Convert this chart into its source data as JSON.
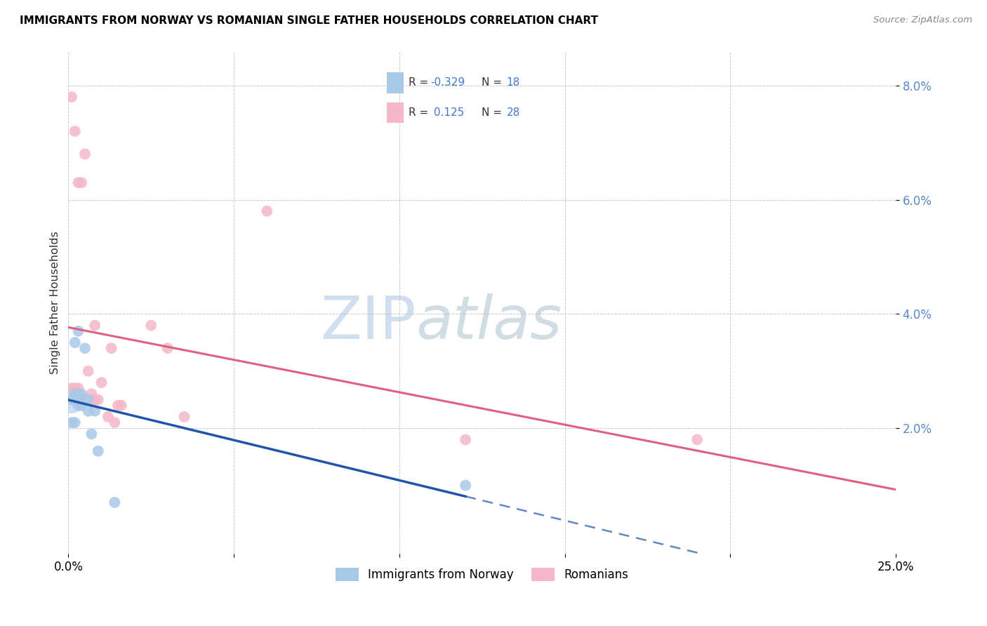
{
  "title": "IMMIGRANTS FROM NORWAY VS ROMANIAN SINGLE FATHER HOUSEHOLDS CORRELATION CHART",
  "source": "Source: ZipAtlas.com",
  "ylabel": "Single Father Households",
  "xlim": [
    0.0,
    0.25
  ],
  "ylim": [
    -0.002,
    0.086
  ],
  "yticks": [
    0.02,
    0.04,
    0.06,
    0.08
  ],
  "ytick_labels": [
    "2.0%",
    "4.0%",
    "6.0%",
    "8.0%"
  ],
  "xticks": [
    0.0,
    0.05,
    0.1,
    0.15,
    0.2,
    0.25
  ],
  "xtick_labels": [
    "0.0%",
    "",
    "",
    "",
    "",
    "25.0%"
  ],
  "legend_blue_r": "-0.329",
  "legend_blue_n": "18",
  "legend_pink_r": "0.125",
  "legend_pink_n": "28",
  "blue_color": "#A8C8E8",
  "pink_color": "#F4B8C8",
  "blue_line_color": "#2255AA",
  "pink_line_color": "#E06080",
  "legend_text_color": "#4477CC",
  "watermark_color": "#D0DFF0",
  "norway_x": [
    0.001,
    0.001,
    0.002,
    0.002,
    0.002,
    0.003,
    0.003,
    0.003,
    0.004,
    0.004,
    0.005,
    0.006,
    0.006,
    0.007,
    0.008,
    0.009,
    0.014,
    0.12
  ],
  "norway_y": [
    0.025,
    0.021,
    0.035,
    0.026,
    0.021,
    0.037,
    0.025,
    0.024,
    0.026,
    0.024,
    0.034,
    0.025,
    0.023,
    0.019,
    0.023,
    0.016,
    0.007,
    0.01
  ],
  "romanian_x": [
    0.001,
    0.001,
    0.002,
    0.002,
    0.003,
    0.003,
    0.003,
    0.004,
    0.004,
    0.005,
    0.005,
    0.006,
    0.007,
    0.008,
    0.008,
    0.009,
    0.01,
    0.012,
    0.013,
    0.014,
    0.015,
    0.016,
    0.025,
    0.03,
    0.035,
    0.06,
    0.19,
    0.12
  ],
  "romanian_y": [
    0.078,
    0.027,
    0.072,
    0.027,
    0.063,
    0.027,
    0.026,
    0.063,
    0.024,
    0.068,
    0.025,
    0.03,
    0.026,
    0.025,
    0.038,
    0.025,
    0.028,
    0.022,
    0.034,
    0.021,
    0.024,
    0.024,
    0.038,
    0.034,
    0.022,
    0.058,
    0.018,
    0.018
  ],
  "dot_size": 130,
  "norway_large_dot_size": 800
}
